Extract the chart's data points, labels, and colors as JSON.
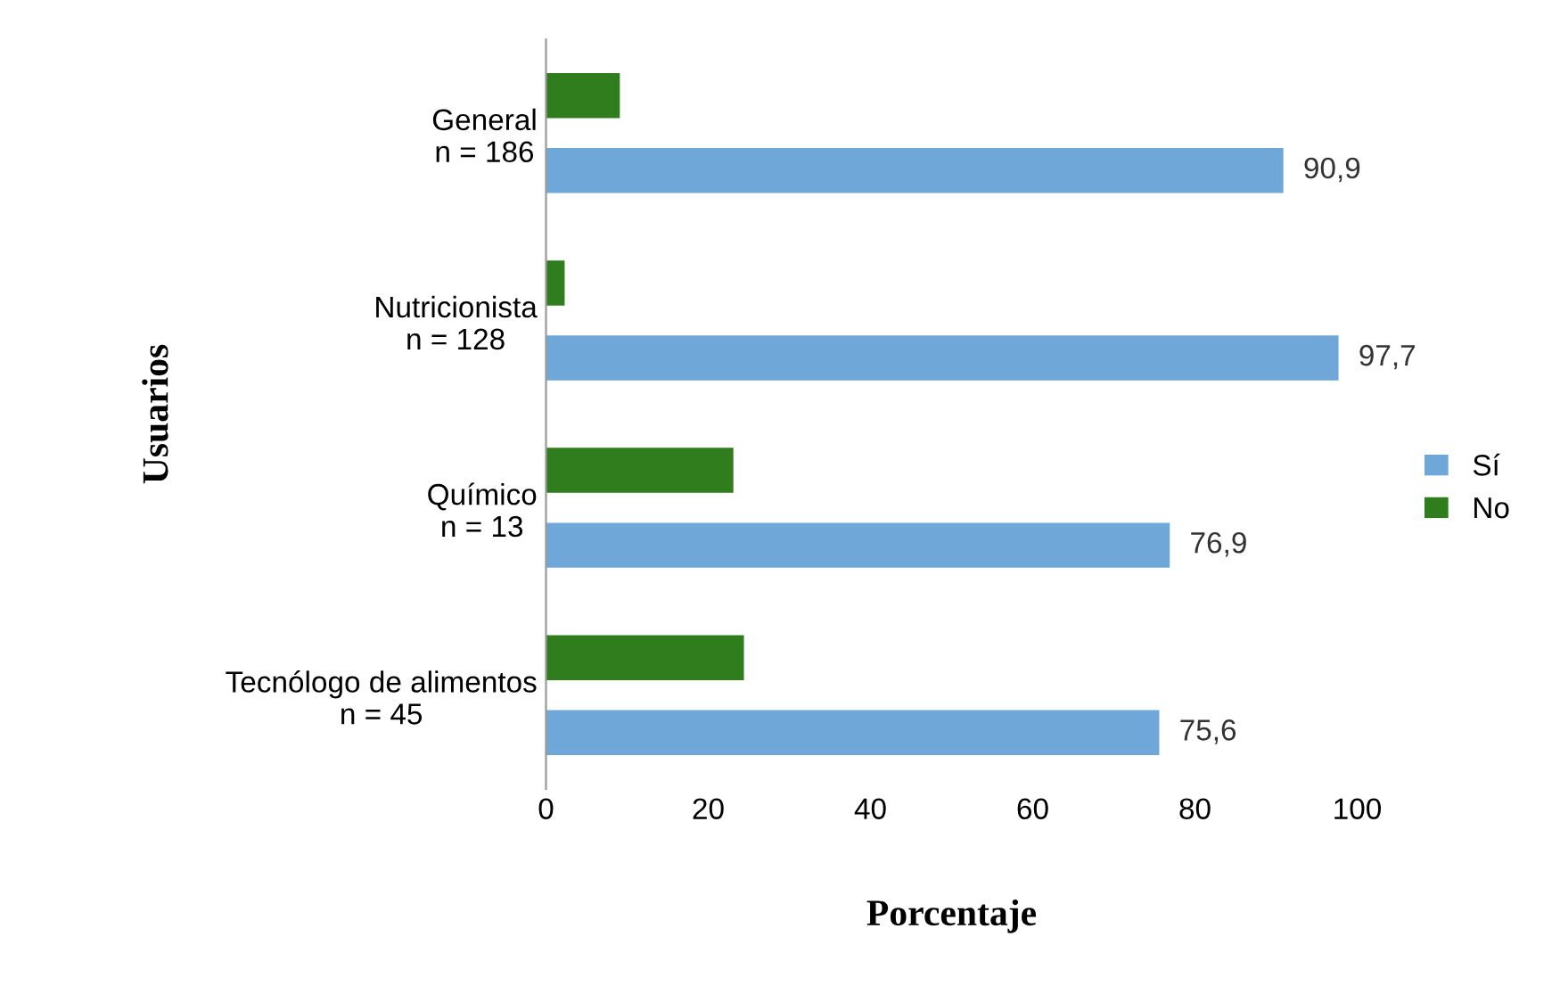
{
  "chart_data": {
    "type": "bar",
    "orientation": "horizontal",
    "xlabel": "Porcentaje",
    "ylabel": "Usuarios",
    "categories": [
      "General\nn = 186",
      "Nutricionista\nn = 128",
      "Químico\nn = 13",
      "Tecnólogo de alimentos\nn = 45"
    ],
    "series": [
      {
        "name": "No",
        "color": "#2f7d1c",
        "values": [
          9.1,
          2.3,
          23.1,
          24.4
        ]
      },
      {
        "name": "Sí",
        "color": "#6fa8d8",
        "values": [
          90.9,
          97.7,
          76.9,
          75.6
        ],
        "value_labels": [
          "90,9",
          "97,7",
          "76,9",
          "75,6"
        ]
      }
    ],
    "xlim": [
      0,
      100
    ],
    "xticks": [
      0,
      20,
      40,
      60,
      80,
      100
    ],
    "grid": false,
    "legend": "right"
  }
}
